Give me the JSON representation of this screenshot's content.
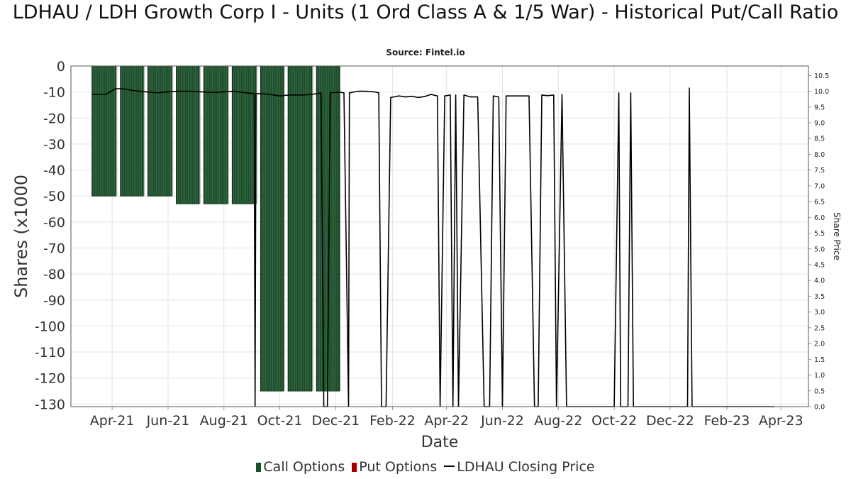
{
  "chart_data": {
    "type": "bar",
    "title": "LDHAU / LDH Growth Corp I - Units (1 Ord Class A & 1/5 War) - Historical Put/Call Ratio",
    "subtitle": "Source: Fintel.io",
    "xlabel": "Date",
    "ylabel": "Shares (x1000",
    "y2label": "Share Price",
    "ylim": [
      -131,
      0
    ],
    "y2lim": [
      0,
      10.8
    ],
    "yticks": [
      0,
      -10,
      -20,
      -30,
      -40,
      -50,
      -60,
      -70,
      -80,
      -90,
      -100,
      -110,
      -120,
      -130
    ],
    "y2ticks": [
      0.0,
      0.5,
      1.0,
      1.5,
      2.0,
      2.5,
      3.0,
      3.5,
      4.0,
      4.5,
      5.0,
      5.5,
      6.0,
      6.5,
      7.0,
      7.5,
      8.0,
      8.5,
      9.0,
      9.5,
      10.0,
      10.5
    ],
    "xlim": [
      "2021-02-15",
      "2023-05-01"
    ],
    "xticks": [
      {
        "date": "2021-04-01",
        "label": "Apr-21"
      },
      {
        "date": "2021-06-01",
        "label": "Jun-21"
      },
      {
        "date": "2021-08-01",
        "label": "Aug-21"
      },
      {
        "date": "2021-10-01",
        "label": "Oct-21"
      },
      {
        "date": "2021-12-01",
        "label": "Dec-21"
      },
      {
        "date": "2022-02-01",
        "label": "Feb-22"
      },
      {
        "date": "2022-04-01",
        "label": "Apr-22"
      },
      {
        "date": "2022-06-01",
        "label": "Jun-22"
      },
      {
        "date": "2022-08-01",
        "label": "Aug-22"
      },
      {
        "date": "2022-10-01",
        "label": "Oct-22"
      },
      {
        "date": "2022-12-01",
        "label": "Dec-22"
      },
      {
        "date": "2023-02-01",
        "label": "Feb-23"
      },
      {
        "date": "2023-04-01",
        "label": "Apr-23"
      }
    ],
    "grid": true,
    "legend_position": "bottom",
    "series": [
      {
        "name": "Call Options",
        "type": "bar",
        "color": "#1e4d2b",
        "points": [
          {
            "start": "2021-03-10",
            "end": "2021-04-05",
            "value": -50
          },
          {
            "start": "2021-04-10",
            "end": "2021-05-05",
            "value": -50
          },
          {
            "start": "2021-05-10",
            "end": "2021-06-05",
            "value": -50
          },
          {
            "start": "2021-06-10",
            "end": "2021-07-05",
            "value": -53
          },
          {
            "start": "2021-07-10",
            "end": "2021-08-05",
            "value": -53
          },
          {
            "start": "2021-08-10",
            "end": "2021-09-05",
            "value": -53
          },
          {
            "start": "2021-09-10",
            "end": "2021-10-05",
            "value": -125
          },
          {
            "start": "2021-10-10",
            "end": "2021-11-05",
            "value": -125
          },
          {
            "start": "2021-11-10",
            "end": "2021-12-05",
            "value": -125
          }
        ]
      },
      {
        "name": "Put Options",
        "type": "bar",
        "color": "#a00000",
        "points": []
      },
      {
        "name": "LDHAU Closing Price",
        "type": "line",
        "color": "#000000",
        "axis": "right",
        "points": [
          [
            "2021-03-10",
            9.9
          ],
          [
            "2021-03-25",
            9.9
          ],
          [
            "2021-04-05",
            10.08
          ],
          [
            "2021-04-12",
            10.08
          ],
          [
            "2021-04-25",
            10.02
          ],
          [
            "2021-05-08",
            9.98
          ],
          [
            "2021-05-20",
            9.95
          ],
          [
            "2021-06-01",
            9.98
          ],
          [
            "2021-06-12",
            10.0
          ],
          [
            "2021-06-25",
            10.0
          ],
          [
            "2021-07-08",
            9.98
          ],
          [
            "2021-07-20",
            9.96
          ],
          [
            "2021-08-01",
            9.98
          ],
          [
            "2021-08-12",
            10.0
          ],
          [
            "2021-08-25",
            9.95
          ],
          [
            "2021-09-03",
            9.93
          ],
          [
            "2021-09-04",
            0.0
          ],
          [
            "2021-09-05",
            9.93
          ],
          [
            "2021-09-20",
            9.9
          ],
          [
            "2021-10-01",
            9.85
          ],
          [
            "2021-10-10",
            9.88
          ],
          [
            "2021-10-25",
            9.88
          ],
          [
            "2021-11-05",
            9.9
          ],
          [
            "2021-11-15",
            9.95
          ],
          [
            "2021-11-18",
            0.0
          ],
          [
            "2021-11-22",
            0.0
          ],
          [
            "2021-11-25",
            9.95
          ],
          [
            "2021-12-05",
            9.97
          ],
          [
            "2021-12-10",
            9.95
          ],
          [
            "2021-12-15",
            0.0
          ],
          [
            "2021-12-16",
            9.95
          ],
          [
            "2021-12-25",
            10.0
          ],
          [
            "2022-01-03",
            10.0
          ],
          [
            "2022-01-12",
            9.98
          ],
          [
            "2022-01-17",
            9.95
          ],
          [
            "2022-01-20",
            0.0
          ],
          [
            "2022-01-25",
            0.0
          ],
          [
            "2022-01-30",
            9.8
          ],
          [
            "2022-02-08",
            9.85
          ],
          [
            "2022-02-15",
            9.82
          ],
          [
            "2022-02-22",
            9.84
          ],
          [
            "2022-03-01",
            9.8
          ],
          [
            "2022-03-08",
            9.83
          ],
          [
            "2022-03-15",
            9.9
          ],
          [
            "2022-03-22",
            9.85
          ],
          [
            "2022-03-25",
            0.0
          ],
          [
            "2022-03-30",
            9.85
          ],
          [
            "2022-04-05",
            9.88
          ],
          [
            "2022-04-08",
            0.0
          ],
          [
            "2022-04-11",
            9.88
          ],
          [
            "2022-04-14",
            0.0
          ],
          [
            "2022-04-20",
            9.88
          ],
          [
            "2022-04-27",
            9.82
          ],
          [
            "2022-05-05",
            9.82
          ],
          [
            "2022-05-12",
            0.0
          ],
          [
            "2022-05-18",
            0.0
          ],
          [
            "2022-05-22",
            9.85
          ],
          [
            "2022-05-28",
            9.82
          ],
          [
            "2022-06-01",
            0.0
          ],
          [
            "2022-06-05",
            9.85
          ],
          [
            "2022-06-10",
            9.85
          ],
          [
            "2022-06-17",
            9.85
          ],
          [
            "2022-06-24",
            9.85
          ],
          [
            "2022-06-30",
            9.85
          ],
          [
            "2022-07-06",
            0.0
          ],
          [
            "2022-07-10",
            0.0
          ],
          [
            "2022-07-14",
            9.88
          ],
          [
            "2022-07-20",
            9.86
          ],
          [
            "2022-07-27",
            9.88
          ],
          [
            "2022-07-30",
            0.0
          ],
          [
            "2022-08-05",
            9.9
          ],
          [
            "2022-08-10",
            0.0
          ],
          [
            "2022-08-15",
            0.0
          ],
          [
            "2022-10-01",
            0.0
          ],
          [
            "2022-10-06",
            9.95
          ],
          [
            "2022-10-08",
            0.0
          ],
          [
            "2022-10-16",
            0.0
          ],
          [
            "2022-10-19",
            9.95
          ],
          [
            "2022-10-22",
            0.0
          ],
          [
            "2022-12-20",
            0.0
          ],
          [
            "2022-12-22",
            10.1
          ],
          [
            "2022-12-25",
            0.0
          ],
          [
            "2023-03-25",
            0.0
          ]
        ]
      }
    ]
  }
}
